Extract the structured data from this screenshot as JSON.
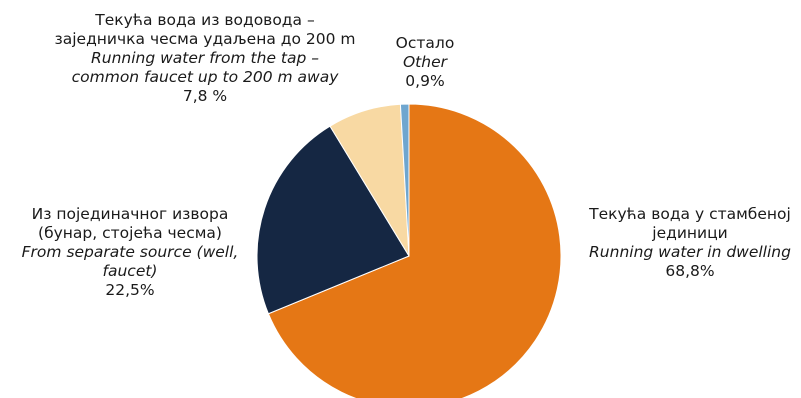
{
  "chart_data": {
    "type": "pie",
    "start_angle_deg": 0,
    "direction": "clockwise",
    "slices": [
      {
        "label_sr": [
          "Текућа вода у стамбеној",
          "јединици"
        ],
        "label_en": [
          "Running water in dwelling"
        ],
        "value_text": "68,8%",
        "value": 68.8,
        "color": "#E57715"
      },
      {
        "label_sr": [
          "Из појединачног извора",
          "(бунар, стојећа чесма)"
        ],
        "label_en": [
          "From separate source (well,",
          "faucet)"
        ],
        "value_text": "22,5%",
        "value": 22.5,
        "color": "#152743"
      },
      {
        "label_sr": [
          "Текућа вода из водовода –",
          "заједничка чесма удаљена до 200 m"
        ],
        "label_en": [
          "Running water from the tap –",
          "common faucet up to 200 m away"
        ],
        "value_text": "7,8 %",
        "value": 7.8,
        "color": "#F8D9A3"
      },
      {
        "label_sr": [
          "Остало"
        ],
        "label_en": [
          "Other"
        ],
        "value_text": "0,9%",
        "value": 0.9,
        "color": "#6FA6CF"
      }
    ]
  }
}
